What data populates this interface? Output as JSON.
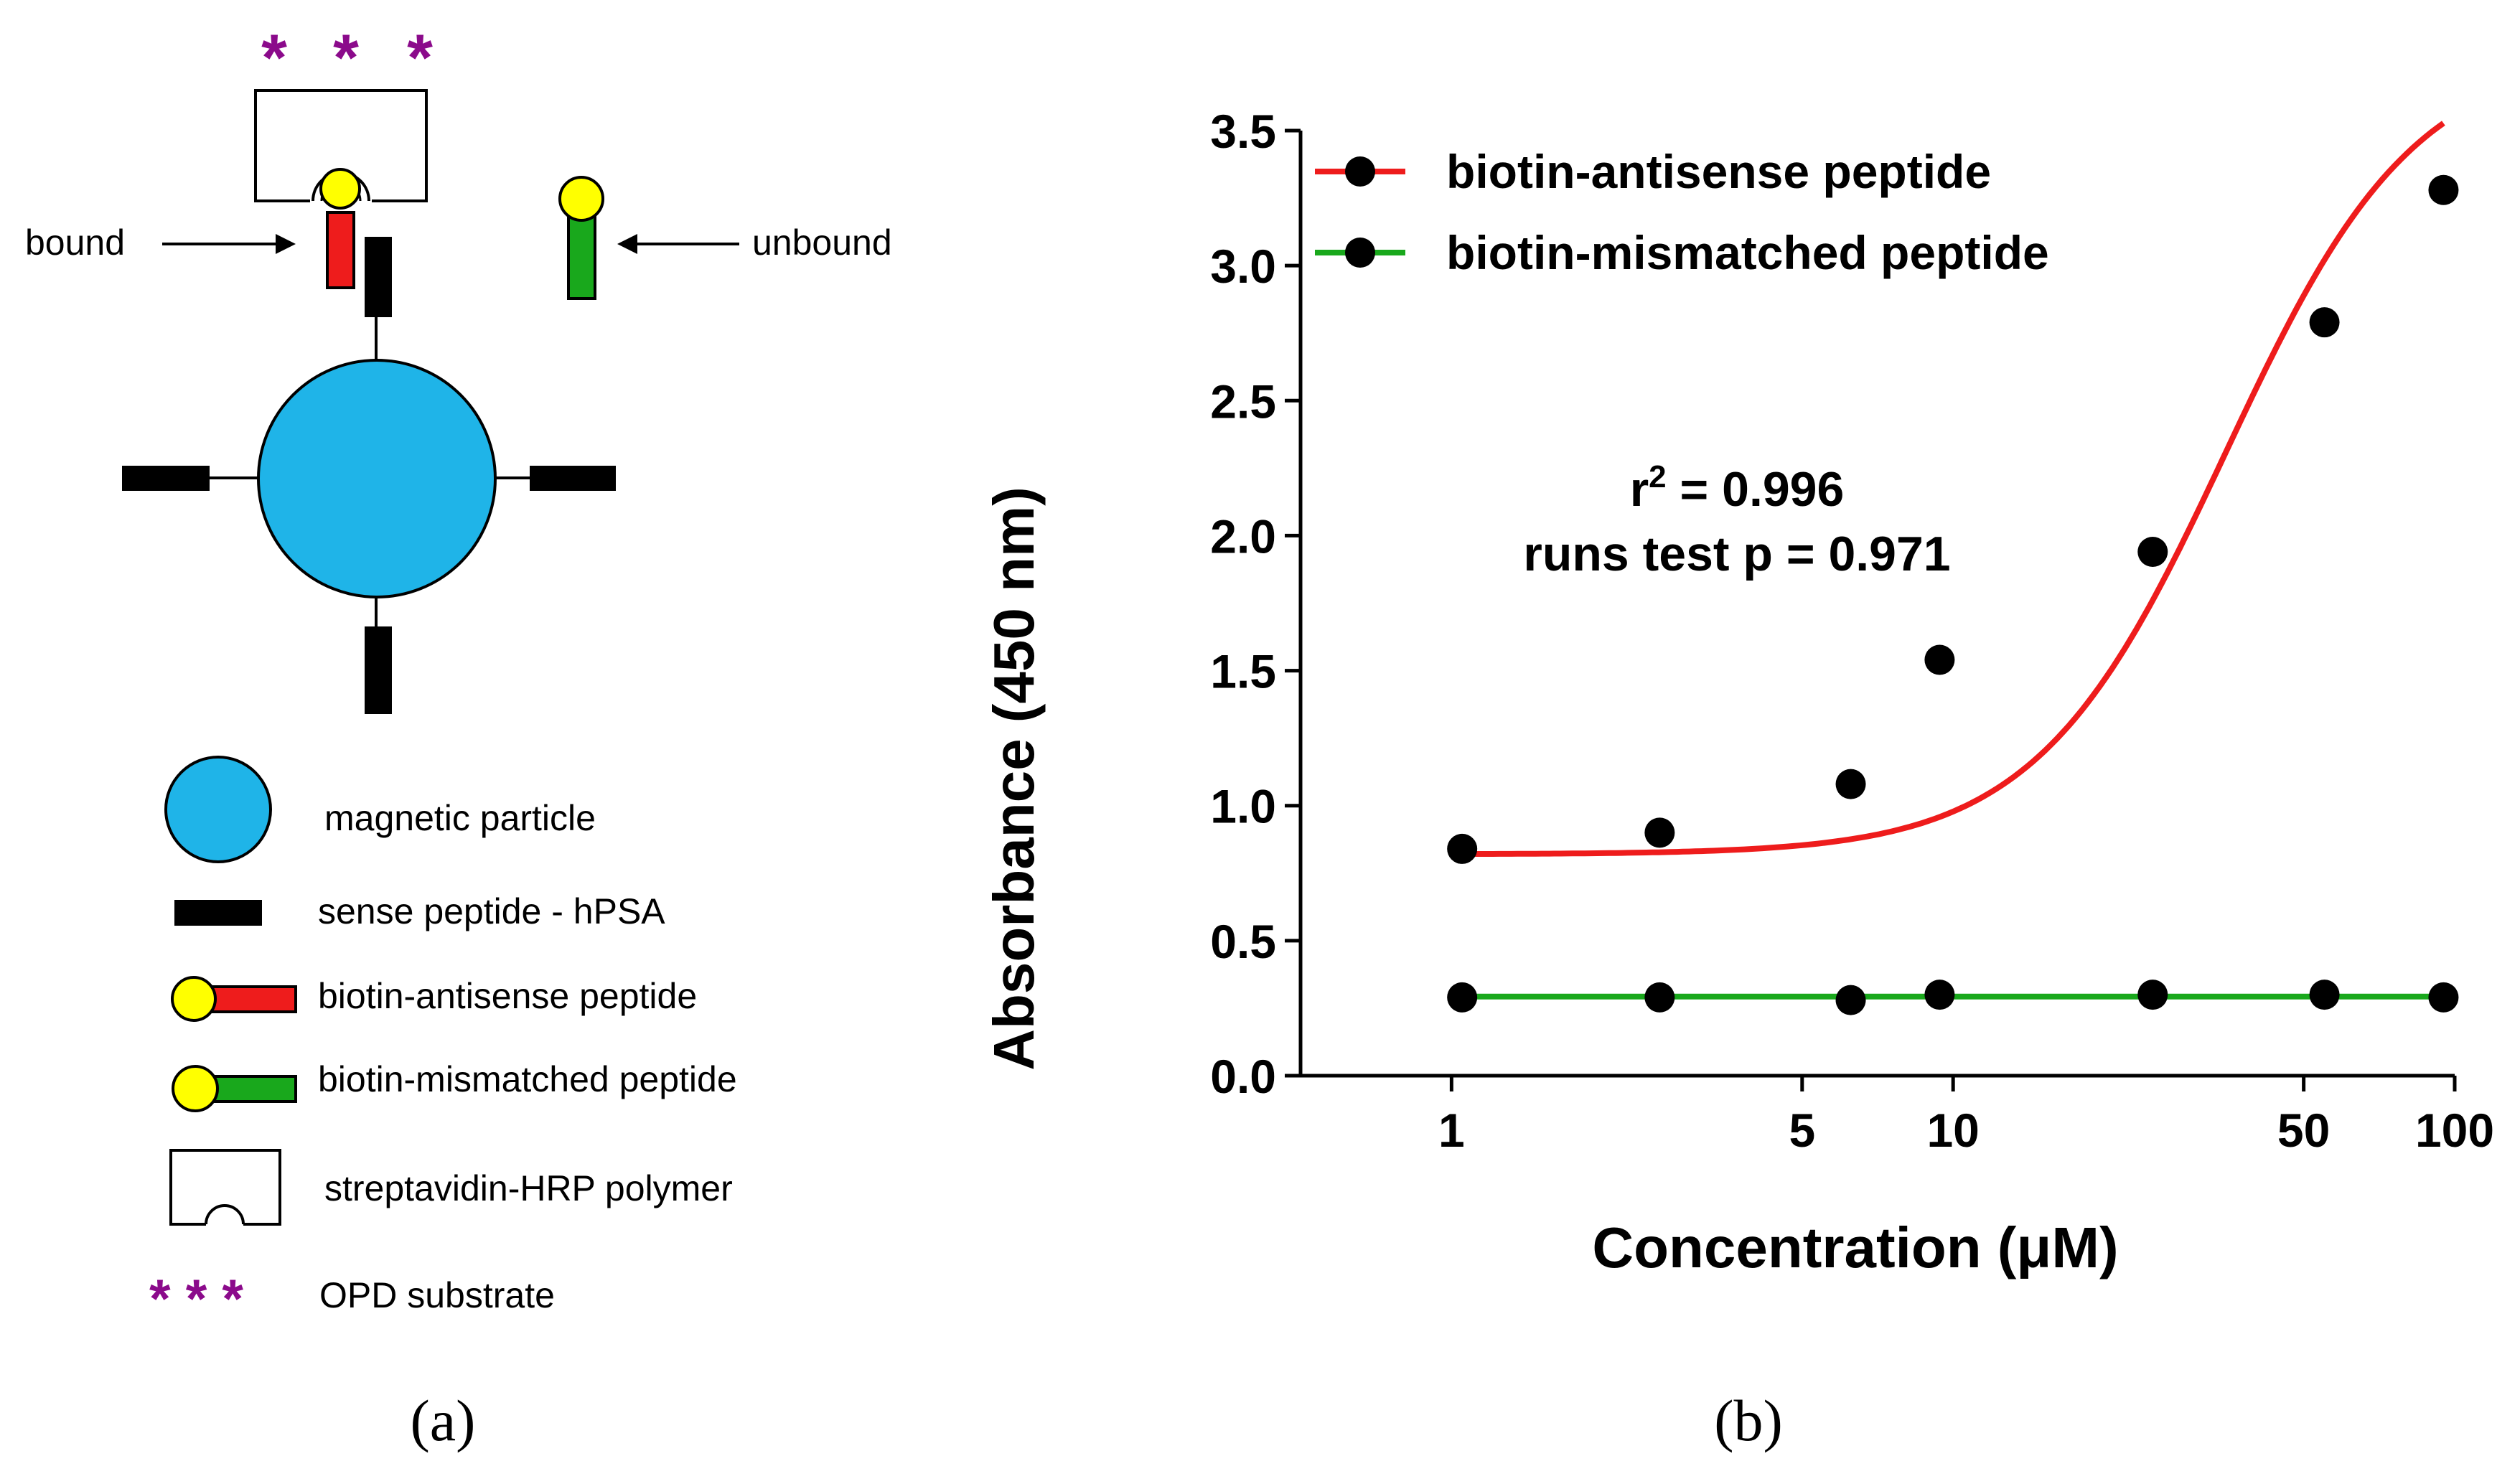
{
  "colors": {
    "particle": "#1fb4e8",
    "sense": "#000000",
    "antisense": "#ee1c1c",
    "mismatched": "#19a81c",
    "biotin": "#ffff00",
    "substrate": "#8b0a8b"
  },
  "panel_a": {
    "caption": "(a)",
    "substrate_symbol": "* * *",
    "bound_label": "bound",
    "unbound_label": "unbound",
    "legend": [
      {
        "label": "magnetic particle",
        "icon": "magnetic-particle-icon"
      },
      {
        "label": "sense peptide - hPSA",
        "icon": "sense-peptide-icon"
      },
      {
        "label": "biotin-antisense peptide",
        "icon": "antisense-peptide-icon"
      },
      {
        "label": "biotin-mismatched peptide",
        "icon": "mismatched-peptide-icon"
      },
      {
        "label": "streptavidin-HRP polymer",
        "icon": "streptavidin-hrp-icon"
      },
      {
        "label": "OPD substrate",
        "icon": "opd-substrate-icon"
      }
    ]
  },
  "panel_b": {
    "caption": "(b)",
    "stats_line1_prefix": "r",
    "stats_line1_sup": "2",
    "stats_line1_suffix": " = 0.996",
    "stats_line2": "runs test p = 0.971"
  },
  "chart_data": {
    "type": "scatter",
    "title": "",
    "xlabel": "Concentration (μM)",
    "ylabel": "Absorbance (450 nm)",
    "xscale": "log",
    "xlim": [
      0.5,
      100
    ],
    "ylim": [
      0,
      3.5
    ],
    "xticks": [
      1,
      5,
      10,
      50,
      100
    ],
    "xtick_labels": [
      "1",
      "5",
      "10",
      "50",
      "100"
    ],
    "yticks": [
      0.0,
      0.5,
      1.0,
      1.5,
      2.0,
      2.5,
      3.0,
      3.5
    ],
    "ytick_labels": [
      "0.0",
      "0.5",
      "1.0",
      "1.5",
      "2.0",
      "2.5",
      "3.0",
      "3.5"
    ],
    "legend_position": "top-left",
    "series": [
      {
        "name": "biotin-antisense peptide",
        "color": "#ee1c1c",
        "x": [
          1.05,
          2.6,
          6.25,
          9.4,
          25,
          55,
          95
        ],
        "y": [
          0.84,
          0.9,
          1.08,
          1.54,
          1.94,
          2.79,
          3.28
        ],
        "fit": "sigmoidal"
      },
      {
        "name": "biotin-mismatched peptide",
        "color": "#19a81c",
        "x": [
          1.05,
          2.6,
          6.25,
          9.4,
          25,
          55,
          95
        ],
        "y": [
          0.29,
          0.29,
          0.28,
          0.3,
          0.3,
          0.3,
          0.29
        ],
        "fit": "flat"
      }
    ]
  }
}
